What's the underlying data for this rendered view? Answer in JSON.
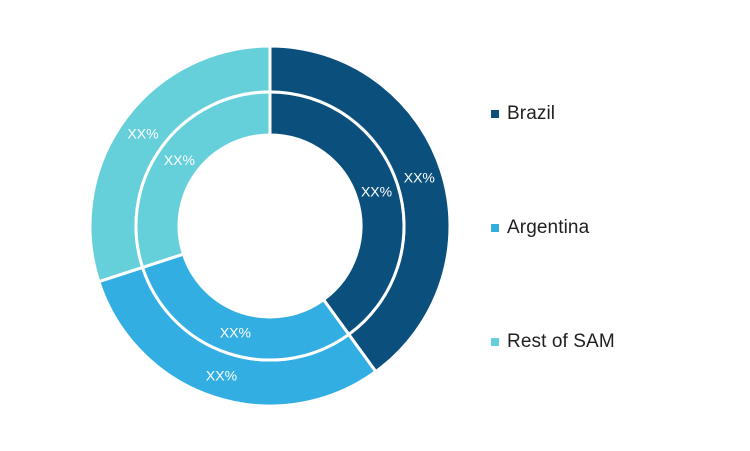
{
  "chart_data": {
    "type": "pie",
    "style": "nested-donut",
    "title": "",
    "categories": [
      "Brazil",
      "Argentina",
      "Rest of SAM"
    ],
    "colors": [
      "#0b4f7c",
      "#33aee3",
      "#66d0da"
    ],
    "series": [
      {
        "ring": "outer",
        "values": [
          40,
          30,
          30
        ],
        "labels": [
          "XX%",
          "XX%",
          "XX%"
        ]
      },
      {
        "ring": "inner",
        "values": [
          40,
          30,
          30
        ],
        "labels": [
          "XX%",
          "XX%",
          "XX%"
        ]
      }
    ],
    "legend_position": "right"
  },
  "legend": {
    "items": [
      {
        "label": "Brazil",
        "color": "#0b4f7c"
      },
      {
        "label": "Argentina",
        "color": "#33aee3"
      },
      {
        "label": "Rest of SAM",
        "color": "#66d0da"
      }
    ]
  }
}
